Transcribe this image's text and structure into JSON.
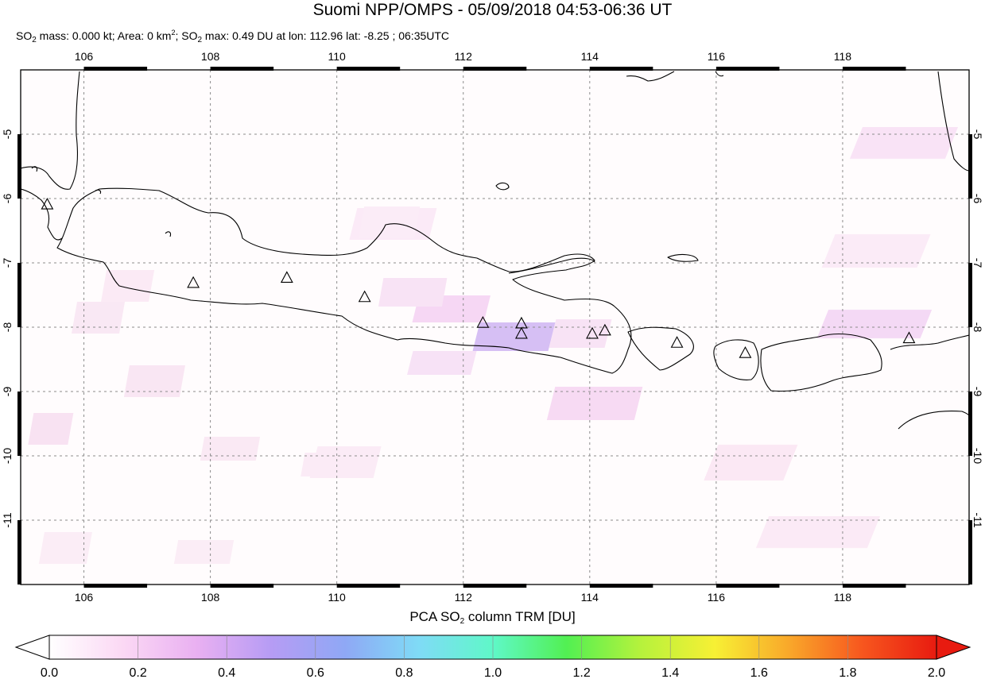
{
  "header": {
    "title": "Suomi NPP/OMPS - 05/09/2018 04:53-06:36 UT",
    "mass_label": "SO",
    "mass_text": " mass: 0.000 kt; Area: 0 km",
    "area_sup": "2",
    "max_label": "; SO",
    "max_text": " max: 0.49 DU at lon: 112.96 lat: -8.25 ; 06:35UTC",
    "sub_2": "2"
  },
  "map": {
    "lon_range": [
      105,
      120
    ],
    "lat_range": [
      -12,
      -4
    ],
    "lon_ticks": [
      "106",
      "108",
      "110",
      "112",
      "114",
      "116",
      "118"
    ],
    "lat_ticks": [
      "-5",
      "-6",
      "-7",
      "-8",
      "-9",
      "-10",
      "-11"
    ],
    "grid": true,
    "colors": {
      "coast": "#000000",
      "grid": "#8c8c8c",
      "frame": "#000000"
    },
    "volcanoes": [
      {
        "lon": 105.42,
        "lat": -6.1
      },
      {
        "lon": 107.73,
        "lat": -7.32
      },
      {
        "lon": 109.21,
        "lat": -7.24
      },
      {
        "lon": 110.44,
        "lat": -7.54
      },
      {
        "lon": 112.31,
        "lat": -7.94
      },
      {
        "lon": 112.92,
        "lat": -7.95
      },
      {
        "lon": 112.92,
        "lat": -8.11
      },
      {
        "lon": 114.04,
        "lat": -8.11
      },
      {
        "lon": 114.24,
        "lat": -8.06
      },
      {
        "lon": 115.38,
        "lat": -8.25
      },
      {
        "lon": 116.46,
        "lat": -8.41
      },
      {
        "lon": 119.05,
        "lat": -8.18
      }
    ]
  },
  "colorbar": {
    "label_pre": "PCA SO",
    "label_sub": "2",
    "label_post": " column TRM [DU]",
    "range": [
      0.0,
      2.0
    ],
    "ticks": [
      "0.0",
      "0.2",
      "0.4",
      "0.6",
      "0.8",
      "1.0",
      "1.2",
      "1.4",
      "1.6",
      "1.8",
      "2.0"
    ],
    "gradient": [
      "#ffffff",
      "#fbd8f4",
      "#e9b0f2",
      "#b69cf4",
      "#8fa8f5",
      "#7fdbf6",
      "#5ff8c8",
      "#52f052",
      "#b6f23c",
      "#f7f034",
      "#f9a82a",
      "#f7561e",
      "#e81b10"
    ]
  }
}
